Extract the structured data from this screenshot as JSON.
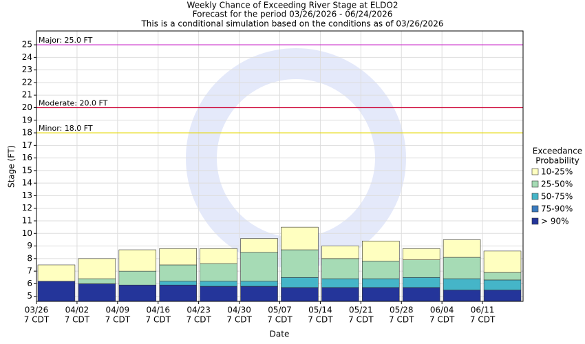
{
  "chart_data": {
    "type": "exceedance_bar",
    "title": "Weekly Chance of Exceeding River Stage at ELDO2",
    "subtitles": [
      "Forecast for the period 03/26/2026 - 06/24/2026",
      "This is a conditional simulation based on the conditions as of 03/26/2026"
    ],
    "x_label": "Date",
    "y_label": "Stage (FT)",
    "categories": [
      "03/26",
      "04/02",
      "04/09",
      "04/16",
      "04/23",
      "04/30",
      "05/07",
      "05/14",
      "05/21",
      "05/28",
      "06/04",
      "06/11"
    ],
    "tick_sublabel": "7 CDT",
    "legend_title": [
      "Exceedance",
      "Probability"
    ],
    "series": [
      {
        "name": "10-25%",
        "color": "#ffffc0",
        "values": [
          7.5,
          8.0,
          8.7,
          8.8,
          8.8,
          9.6,
          10.5,
          9.0,
          9.4,
          8.8,
          9.5,
          8.6
        ]
      },
      {
        "name": "25-50%",
        "color": "#a6dbb5",
        "values": [
          6.2,
          6.4,
          7.0,
          7.5,
          7.6,
          8.5,
          8.7,
          8.0,
          7.8,
          7.9,
          8.1,
          6.9
        ]
      },
      {
        "name": "50-75%",
        "color": "#45b5c8",
        "values": [
          6.2,
          6.0,
          5.9,
          6.2,
          6.2,
          6.2,
          6.5,
          6.4,
          6.4,
          6.5,
          6.4,
          6.3
        ]
      },
      {
        "name": "75-90%",
        "color": "#3a7bbf",
        "values": [
          6.2,
          6.0,
          5.9,
          5.9,
          5.8,
          5.8,
          5.7,
          5.7,
          5.7,
          5.7,
          5.5,
          5.5
        ]
      },
      {
        "name": "> 90%",
        "color": "#24359a",
        "values": [
          6.2,
          6.0,
          5.9,
          5.9,
          5.8,
          5.8,
          5.7,
          5.7,
          5.7,
          5.7,
          5.5,
          5.5
        ]
      }
    ],
    "thresholds": [
      {
        "label": "Major: 25.0 FT",
        "value": 25,
        "color": "#cc33cc"
      },
      {
        "label": "Moderate: 20.0 FT",
        "value": 20,
        "color": "#cc0033"
      },
      {
        "label": "Minor: 18.0 FT",
        "value": 18,
        "color": "#e6d800"
      }
    ],
    "ylim": [
      4.6,
      26.1
    ],
    "yticks": [
      5,
      6,
      7,
      8,
      9,
      10,
      11,
      12,
      13,
      14,
      15,
      16,
      17,
      18,
      19,
      20,
      21,
      22,
      23,
      24,
      25
    ],
    "grid": true
  }
}
